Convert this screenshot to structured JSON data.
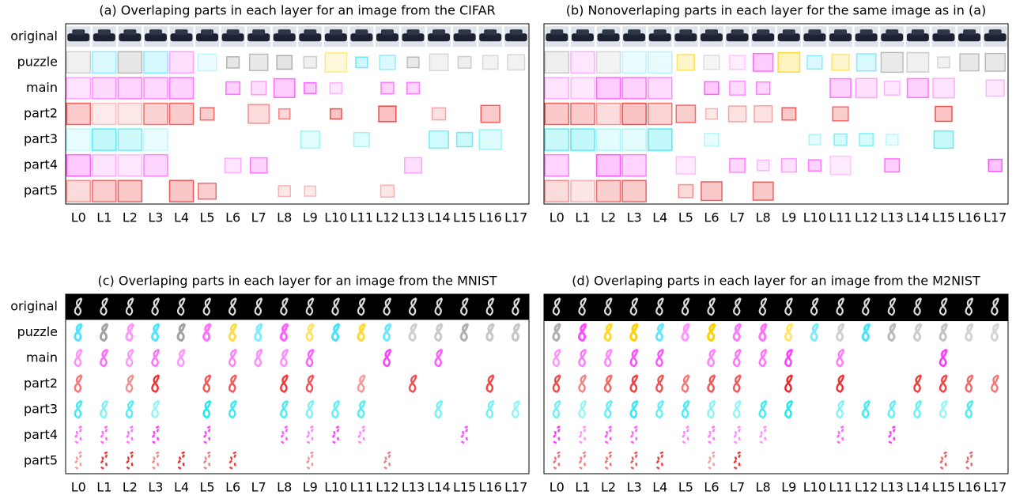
{
  "panels": [
    {
      "title": "(a) Overlaping parts in each layer for an image from the CIFAR",
      "row_labels": [
        "original",
        "puzzle",
        "main",
        "part2",
        "part3",
        "part4",
        "part5"
      ],
      "col_labels": [
        "L0",
        "L1",
        "L2",
        "L3",
        "L4",
        "L5",
        "L6",
        "L7",
        "L8",
        "L9",
        "L10",
        "L11",
        "L12",
        "L13",
        "L14",
        "L15",
        "L16",
        "L17"
      ]
    },
    {
      "title": "(b) Nonoverlaping parts in each layer for the same image as in (a)",
      "col_labels": [
        "L0",
        "L1",
        "L2",
        "L3",
        "L4",
        "L5",
        "L6",
        "L7",
        "L8",
        "L9",
        "L10",
        "L11",
        "L12",
        "L13",
        "L14",
        "L15",
        "L16",
        "L17"
      ]
    },
    {
      "title": "(c) Overlaping parts in each layer for an image from the MNIST",
      "row_labels": [
        "original",
        "puzzle",
        "main",
        "part2",
        "part3",
        "part4",
        "part5"
      ],
      "col_labels": [
        "L0",
        "L1",
        "L2",
        "L3",
        "L4",
        "L5",
        "L6",
        "L7",
        "L8",
        "L9",
        "L10",
        "L11",
        "L12",
        "L13",
        "L14",
        "L15",
        "L16",
        "L17"
      ]
    },
    {
      "title": "(d) Overlaping parts in each layer for an image from the M2NIST",
      "col_labels": [
        "L0",
        "L1",
        "L2",
        "L3",
        "L4",
        "L5",
        "L6",
        "L7",
        "L8",
        "L9",
        "L10",
        "L11",
        "L12",
        "L13",
        "L14",
        "L15",
        "L16",
        "L17"
      ]
    }
  ]
}
